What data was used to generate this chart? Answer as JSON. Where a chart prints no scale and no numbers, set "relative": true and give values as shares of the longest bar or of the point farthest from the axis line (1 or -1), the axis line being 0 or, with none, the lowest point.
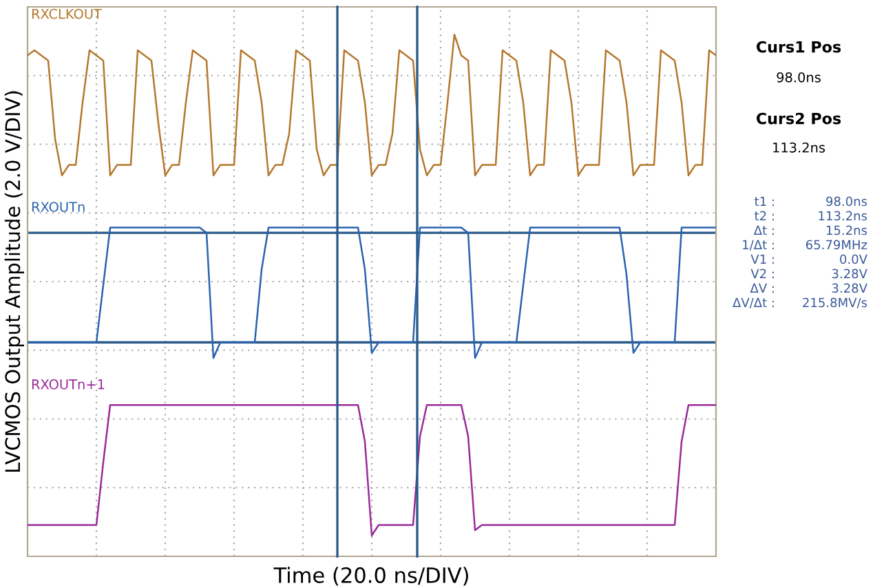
{
  "chart_data": {
    "type": "line",
    "relative": true,
    "xlabel": "Time (20.0 ns/DIV)",
    "ylabel": "LVCMOS Output Amplitude (2.0 V/DIV)",
    "categories": [
      null,
      null,
      null,
      null,
      null,
      null,
      null,
      null,
      null,
      null,
      null,
      null,
      null,
      null,
      null,
      null,
      null,
      null,
      null,
      null,
      null,
      null,
      null,
      null,
      null,
      null,
      null,
      null,
      null,
      null,
      null,
      null,
      null,
      null,
      null,
      null,
      null,
      null,
      null,
      null,
      null,
      null,
      null,
      null,
      null,
      null,
      null,
      null,
      null,
      null,
      null,
      null,
      null,
      null,
      null,
      null,
      null,
      null,
      null,
      null,
      null,
      null,
      null,
      null,
      null,
      null,
      null,
      null,
      null,
      null,
      null,
      null,
      null,
      null,
      null,
      null,
      null,
      null,
      null,
      null,
      null,
      null,
      null,
      null,
      null,
      null,
      null,
      null,
      null,
      null,
      null,
      null,
      null,
      null,
      null,
      null,
      null,
      null,
      null,
      null,
      null
    ],
    "grid": true,
    "legend": false,
    "marker": "none",
    "line_style": "solid",
    "series": [
      {
        "name": "RXCLKOUT",
        "color": "#b5782e",
        "values": [
          0.96,
          0.97,
          0.96,
          0.95,
          0.8,
          0.73,
          0.75,
          0.75,
          0.87,
          0.97,
          0.96,
          0.95,
          0.73,
          0.75,
          0.75,
          0.75,
          0.97,
          0.96,
          0.95,
          0.83,
          0.73,
          0.75,
          0.75,
          0.87,
          0.97,
          0.96,
          0.95,
          0.73,
          0.75,
          0.75,
          0.75,
          0.97,
          0.96,
          0.95,
          0.87,
          0.73,
          0.75,
          0.75,
          0.81,
          0.97,
          0.96,
          0.95,
          0.78,
          0.73,
          0.75,
          0.75,
          0.97,
          0.96,
          0.95,
          0.87,
          0.73,
          0.75,
          0.75,
          0.81,
          0.97,
          0.96,
          0.95,
          0.78,
          0.73,
          0.75,
          0.75,
          0.87,
          1.0,
          0.96,
          0.95,
          0.73,
          0.75,
          0.75,
          0.75,
          0.97,
          0.96,
          0.95,
          0.87,
          0.73,
          0.75,
          0.75,
          0.97,
          0.96,
          0.95,
          0.87,
          0.73,
          0.75,
          0.75,
          0.75,
          0.97,
          0.96,
          0.95,
          0.87,
          0.73,
          0.75,
          0.75,
          0.75,
          0.97,
          0.96,
          0.95,
          0.87,
          0.73,
          0.75,
          0.75,
          0.97,
          0.96
        ]
      },
      {
        "name": "RXOUTn",
        "color": "#2a62b0",
        "values": [
          0.41,
          0.41,
          0.41,
          0.41,
          0.41,
          0.41,
          0.41,
          0.41,
          0.41,
          0.41,
          0.41,
          0.52,
          0.63,
          0.63,
          0.63,
          0.63,
          0.63,
          0.63,
          0.63,
          0.63,
          0.63,
          0.63,
          0.63,
          0.63,
          0.63,
          0.63,
          0.62,
          0.38,
          0.41,
          0.41,
          0.41,
          0.41,
          0.41,
          0.41,
          0.55,
          0.63,
          0.63,
          0.63,
          0.63,
          0.63,
          0.63,
          0.63,
          0.63,
          0.63,
          0.63,
          0.63,
          0.63,
          0.63,
          0.63,
          0.55,
          0.39,
          0.41,
          0.41,
          0.41,
          0.41,
          0.41,
          0.41,
          0.63,
          0.63,
          0.63,
          0.63,
          0.63,
          0.63,
          0.63,
          0.62,
          0.38,
          0.41,
          0.41,
          0.41,
          0.41,
          0.41,
          0.41,
          0.52,
          0.63,
          0.63,
          0.63,
          0.63,
          0.63,
          0.63,
          0.63,
          0.63,
          0.63,
          0.63,
          0.63,
          0.63,
          0.63,
          0.63,
          0.54,
          0.39,
          0.41,
          0.41,
          0.41,
          0.41,
          0.41,
          0.41,
          0.63,
          0.63,
          0.63,
          0.63,
          0.63,
          0.63
        ]
      },
      {
        "name": "RXOUTn+1",
        "color": "#9a2a9a",
        "values": [
          0.06,
          0.06,
          0.06,
          0.06,
          0.06,
          0.06,
          0.06,
          0.06,
          0.06,
          0.06,
          0.06,
          0.18,
          0.29,
          0.29,
          0.29,
          0.29,
          0.29,
          0.29,
          0.29,
          0.29,
          0.29,
          0.29,
          0.29,
          0.29,
          0.29,
          0.29,
          0.29,
          0.29,
          0.29,
          0.29,
          0.29,
          0.29,
          0.29,
          0.29,
          0.29,
          0.29,
          0.29,
          0.29,
          0.29,
          0.29,
          0.29,
          0.29,
          0.29,
          0.29,
          0.29,
          0.29,
          0.29,
          0.29,
          0.29,
          0.22,
          0.04,
          0.06,
          0.06,
          0.06,
          0.06,
          0.06,
          0.06,
          0.23,
          0.29,
          0.29,
          0.29,
          0.29,
          0.29,
          0.29,
          0.23,
          0.05,
          0.06,
          0.06,
          0.06,
          0.06,
          0.06,
          0.06,
          0.06,
          0.06,
          0.06,
          0.06,
          0.06,
          0.06,
          0.06,
          0.06,
          0.06,
          0.06,
          0.06,
          0.06,
          0.06,
          0.06,
          0.06,
          0.06,
          0.06,
          0.06,
          0.06,
          0.06,
          0.06,
          0.06,
          0.06,
          0.22,
          0.29,
          0.29,
          0.29,
          0.29,
          0.29
        ]
      }
    ],
    "ref_lines": [
      {
        "axis": "y",
        "value": 0.62,
        "color": "#2a5a8a"
      },
      {
        "axis": "y",
        "value": 0.41,
        "color": "#2a5a8a"
      }
    ],
    "annotations": [
      "Curs1 Pos",
      "98.0ns",
      "Curs2 Pos",
      "113.2ns",
      "t1 :",
      "98.0ns",
      "t2 :",
      "113.2ns",
      "Δt :",
      "15.2ns",
      "1/Δt :",
      "65.79MHz",
      "V1 :",
      "0.0V",
      "V2 :",
      "3.28V",
      "ΔV :",
      "3.28V",
      "ΔV/Δt :",
      "215.8MV/s"
    ]
  }
}
